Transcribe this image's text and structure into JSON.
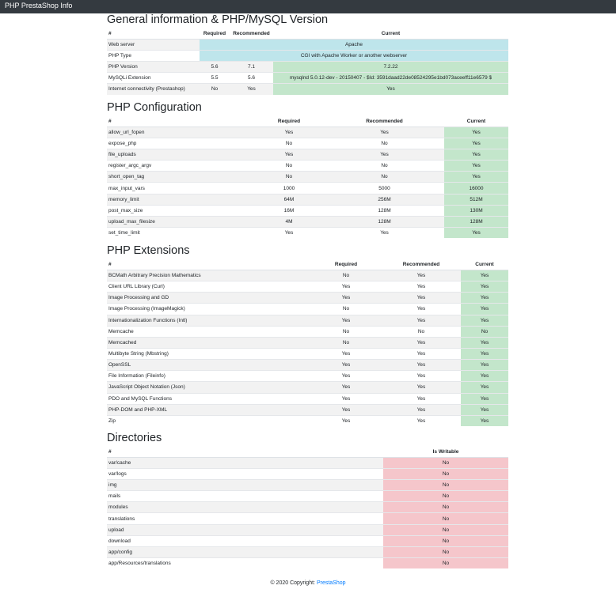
{
  "navbar": {
    "title": "PHP PrestaShop Info"
  },
  "sections": [
    {
      "title": "General information & PHP/MySQL Version",
      "columns": [
        "#",
        "Required",
        "Recommended",
        "Current"
      ],
      "rows": [
        [
          "Web server",
          "Apache"
        ],
        [
          "PHP Type",
          "CGI with Apache Worker or another webserver"
        ],
        [
          "PHP Version",
          "5.6",
          "7.1",
          "7.2.22"
        ],
        [
          "MySQLi Extension",
          "5.5",
          "5.6",
          "mysqlnd 5.0.12-dev - 20150407 - $Id: 3591daad22de08524295e1bd073aceeff11e6579 $"
        ],
        [
          "Internet connectivity (Prestashop)",
          "No",
          "Yes",
          "Yes"
        ]
      ]
    },
    {
      "title": "PHP Configuration",
      "columns": [
        "#",
        "Required",
        "Recommended",
        "Current"
      ],
      "rows": [
        [
          "allow_url_fopen",
          "Yes",
          "Yes",
          "Yes"
        ],
        [
          "expose_php",
          "No",
          "No",
          "Yes"
        ],
        [
          "file_uploads",
          "Yes",
          "Yes",
          "Yes"
        ],
        [
          "register_argc_argv",
          "No",
          "No",
          "Yes"
        ],
        [
          "short_open_tag",
          "No",
          "No",
          "Yes"
        ],
        [
          "max_input_vars",
          "1000",
          "5000",
          "16000"
        ],
        [
          "memory_limit",
          "64M",
          "256M",
          "512M"
        ],
        [
          "post_max_size",
          "16M",
          "128M",
          "130M"
        ],
        [
          "upload_max_filesize",
          "4M",
          "128M",
          "128M"
        ],
        [
          "set_time_limit",
          "Yes",
          "Yes",
          "Yes"
        ]
      ]
    },
    {
      "title": "PHP Extensions",
      "columns": [
        "#",
        "Required",
        "Recommended",
        "Current"
      ],
      "rows": [
        [
          "BCMath Arbitrary Precision Mathematics",
          "No",
          "Yes",
          "Yes"
        ],
        [
          "Client URL Library (Curl)",
          "Yes",
          "Yes",
          "Yes"
        ],
        [
          "Image Processing and GD",
          "Yes",
          "Yes",
          "Yes"
        ],
        [
          "Image Processing (ImageMagick)",
          "No",
          "Yes",
          "Yes"
        ],
        [
          "Internationalization Functions (Intl)",
          "Yes",
          "Yes",
          "Yes"
        ],
        [
          "Memcache",
          "No",
          "No",
          "No"
        ],
        [
          "Memcached",
          "No",
          "Yes",
          "Yes"
        ],
        [
          "Multibyte String (Mbstring)",
          "Yes",
          "Yes",
          "Yes"
        ],
        [
          "OpenSSL",
          "Yes",
          "Yes",
          "Yes"
        ],
        [
          "File Information (Fileinfo)",
          "Yes",
          "Yes",
          "Yes"
        ],
        [
          "JavaScript Object Notation (Json)",
          "Yes",
          "Yes",
          "Yes"
        ],
        [
          "PDO and MySQL Functions",
          "Yes",
          "Yes",
          "Yes"
        ],
        [
          "PHP-DOM and PHP-XML",
          "Yes",
          "Yes",
          "Yes"
        ],
        [
          "Zip",
          "Yes",
          "Yes",
          "Yes"
        ]
      ]
    },
    {
      "title": "Directories",
      "columns": [
        "#",
        "Is Writable"
      ],
      "rows": [
        [
          "var/cache",
          "No"
        ],
        [
          "var/logs",
          "No"
        ],
        [
          "img",
          "No"
        ],
        [
          "mails",
          "No"
        ],
        [
          "modules",
          "No"
        ],
        [
          "translations",
          "No"
        ],
        [
          "upload",
          "No"
        ],
        [
          "download",
          "No"
        ],
        [
          "app/config",
          "No"
        ],
        [
          "app/Resources/translations",
          "No"
        ]
      ]
    }
  ],
  "footer": {
    "text": "© 2020 Copyright:",
    "link": "PrestaShop"
  }
}
